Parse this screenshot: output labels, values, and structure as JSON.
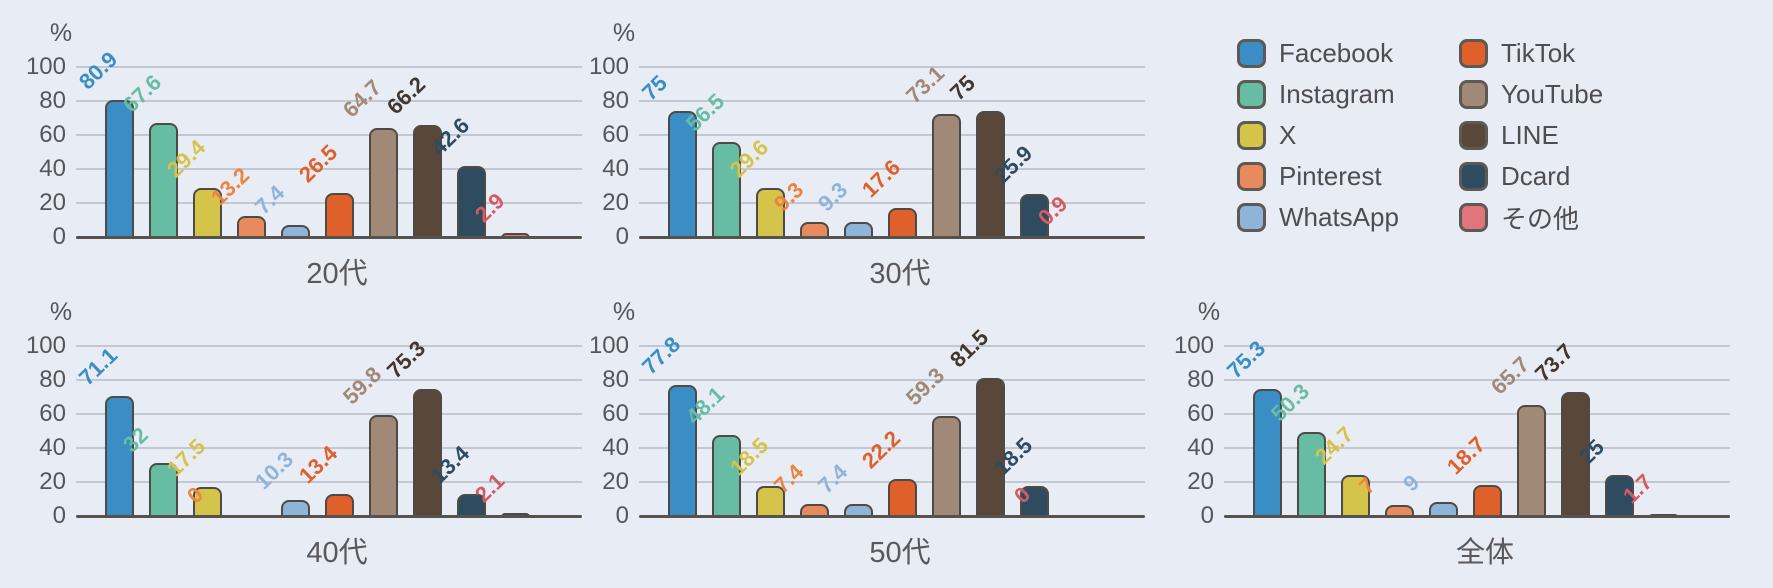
{
  "chart_data": {
    "type": "bar",
    "unit": "%",
    "ylim": [
      0,
      100
    ],
    "yticks": [
      0,
      20,
      40,
      60,
      80,
      100
    ],
    "grid": true,
    "legend_position": "top-right",
    "categories": [
      "Facebook",
      "Instagram",
      "X",
      "Pinterest",
      "WhatsApp",
      "TikTok",
      "YouTube",
      "LINE",
      "Dcard",
      "その他"
    ],
    "series": [
      {
        "name": "Facebook",
        "color": "#3b8ec5"
      },
      {
        "name": "Instagram",
        "color": "#67bda4"
      },
      {
        "name": "X",
        "color": "#d5c44a"
      },
      {
        "name": "Pinterest",
        "color": "#e98a5e",
        "label_color": "#ee8340"
      },
      {
        "name": "WhatsApp",
        "color": "#8fb4da"
      },
      {
        "name": "TikTok",
        "color": "#e0602b"
      },
      {
        "name": "YouTube",
        "color": "#a18977"
      },
      {
        "name": "LINE",
        "color": "#594739",
        "label_color": "#42362d"
      },
      {
        "name": "Dcard",
        "color": "#2e4b60"
      },
      {
        "name": "その他",
        "color": "#e0757c",
        "label_color": "#d65a61"
      }
    ],
    "charts": [
      {
        "title": "20代",
        "values": [
          80.9,
          67.6,
          29.4,
          13.2,
          7.4,
          26.5,
          64.7,
          66.2,
          42.6,
          2.9
        ]
      },
      {
        "title": "30代",
        "values": [
          75,
          56.5,
          29.6,
          9.3,
          9.3,
          17.6,
          73.1,
          75,
          25.9,
          0.9
        ]
      },
      {
        "title": "40代",
        "values": [
          71.1,
          32,
          17.5,
          0,
          10.3,
          13.4,
          59.8,
          75.3,
          13.4,
          2.1
        ]
      },
      {
        "title": "50代",
        "values": [
          77.8,
          48.1,
          18.5,
          7.4,
          7.4,
          22.2,
          59.3,
          81.5,
          18.5,
          0
        ]
      },
      {
        "title": "全体",
        "values": [
          75.3,
          50.3,
          24.7,
          7,
          9,
          18.7,
          65.7,
          73.7,
          25,
          1.7
        ]
      }
    ],
    "style": {
      "background": "#e8ecf5",
      "axis_color": "#56534e",
      "grid_color": "#c2c7d1",
      "tick_text_color": "#55565c",
      "title_color": "#5b585c",
      "legend_text_color": "#4e4e52",
      "swatch_border_color": "#5d5a55"
    }
  }
}
